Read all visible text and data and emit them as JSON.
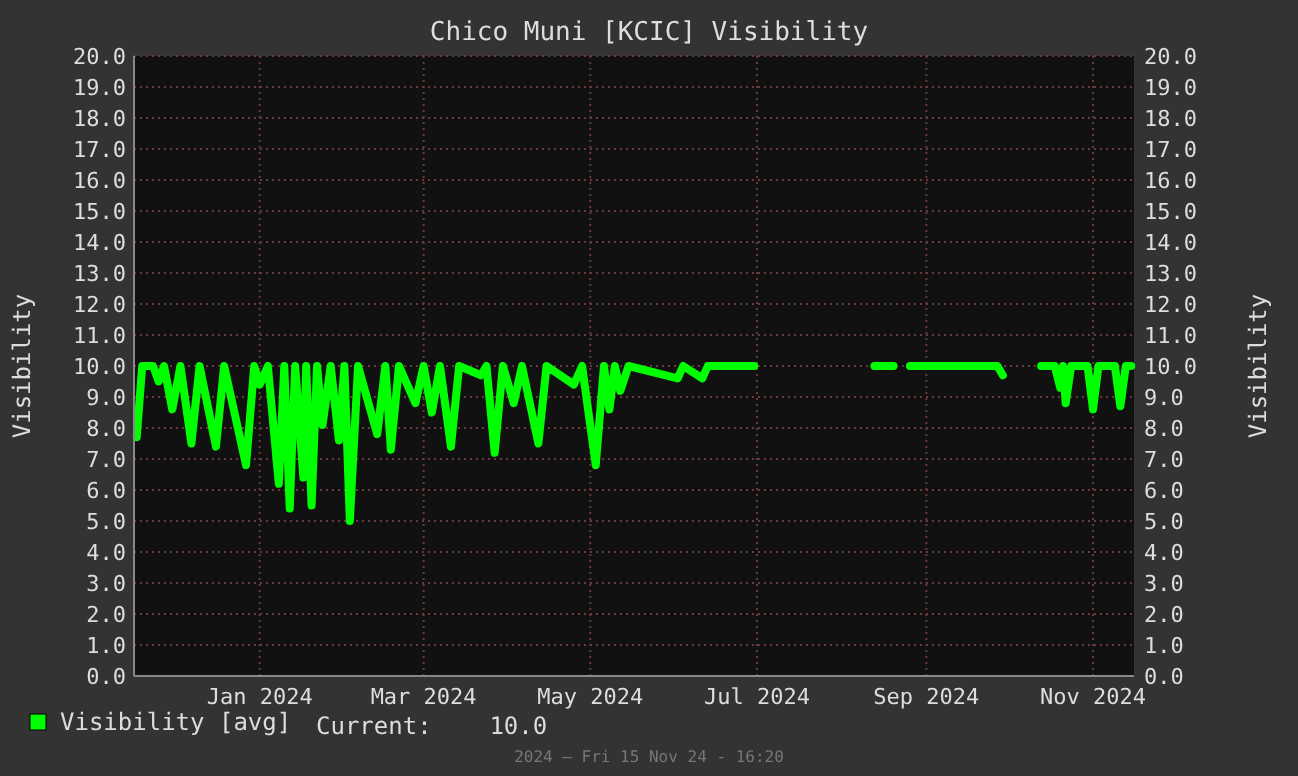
{
  "chart_data": {
    "type": "line",
    "title": "Chico Muni [KCIC] Visibility",
    "ylabel": "Visibility",
    "y2label": "Visibility",
    "x": [
      "2023-11-17",
      "2023-11-19",
      "2023-11-23",
      "2023-11-25",
      "2023-11-27",
      "2023-11-30",
      "2023-12-03",
      "2023-12-07",
      "2023-12-10",
      "2023-12-16",
      "2023-12-19",
      "2023-12-27",
      "2023-12-30",
      "2024-01-01",
      "2024-01-04",
      "2024-01-08",
      "2024-01-10",
      "2024-01-12",
      "2024-01-14",
      "2024-01-17",
      "2024-01-18",
      "2024-01-20",
      "2024-01-22",
      "2024-01-24",
      "2024-01-27",
      "2024-01-30",
      "2024-02-01",
      "2024-02-03",
      "2024-02-06",
      "2024-02-13",
      "2024-02-16",
      "2024-02-18",
      "2024-02-21",
      "2024-02-27",
      "2024-03-01",
      "2024-03-04",
      "2024-03-07",
      "2024-03-11",
      "2024-03-14",
      "2024-03-22",
      "2024-03-24",
      "2024-03-27",
      "2024-03-30",
      "2024-04-03",
      "2024-04-06",
      "2024-04-12",
      "2024-04-15",
      "2024-04-25",
      "2024-04-28",
      "2024-05-03",
      "2024-05-06",
      "2024-05-08",
      "2024-05-10",
      "2024-05-12",
      "2024-05-15",
      "2024-06-02",
      "2024-06-04",
      "2024-06-11",
      "2024-06-13",
      "2024-06-30",
      "2024-07-15",
      "2024-08-13",
      "2024-08-20",
      "2024-08-23",
      "2024-08-26",
      "2024-09-27",
      "2024-09-29",
      "2024-10-06",
      "2024-10-13",
      "2024-10-18",
      "2024-10-20",
      "2024-10-21",
      "2024-10-22",
      "2024-10-24",
      "2024-10-30",
      "2024-11-01",
      "2024-11-03",
      "2024-11-09",
      "2024-11-11",
      "2024-11-13",
      "2024-11-15"
    ],
    "series": [
      {
        "name": "Visibility [avg]",
        "color": "#00ff00",
        "values": [
          7.7,
          10.0,
          10.0,
          9.5,
          10.0,
          8.6,
          10.0,
          7.5,
          10.0,
          7.4,
          10.0,
          6.8,
          10.0,
          9.4,
          10.0,
          6.2,
          10.0,
          5.4,
          10.0,
          6.4,
          10.0,
          5.5,
          10.0,
          8.1,
          10.0,
          7.6,
          10.0,
          5.0,
          10.0,
          7.8,
          10.0,
          7.3,
          10.0,
          8.8,
          10.0,
          8.5,
          10.0,
          7.4,
          10.0,
          9.7,
          10.0,
          7.2,
          10.0,
          8.8,
          10.0,
          7.5,
          10.0,
          9.4,
          10.0,
          6.8,
          10.0,
          8.6,
          10.0,
          9.2,
          10.0,
          9.6,
          10.0,
          9.6,
          10.0,
          10.0,
          null,
          10.0,
          10.0,
          null,
          10.0,
          10.0,
          9.7,
          null,
          10.0,
          10.0,
          9.3,
          10.0,
          8.8,
          10.0,
          10.0,
          8.6,
          10.0,
          10.0,
          8.7,
          10.0,
          10.0
        ]
      }
    ],
    "xlim": [
      "2023-11-16",
      "2024-11-16"
    ],
    "xticks": [
      {
        "value": "2024-01-01",
        "label": "Jan 2024"
      },
      {
        "value": "2024-03-01",
        "label": "Mar 2024"
      },
      {
        "value": "2024-05-01",
        "label": "May 2024"
      },
      {
        "value": "2024-07-01",
        "label": "Jul 2024"
      },
      {
        "value": "2024-09-01",
        "label": "Sep 2024"
      },
      {
        "value": "2024-11-01",
        "label": "Nov 2024"
      }
    ],
    "ylim": [
      0,
      20
    ],
    "yticks": [
      {
        "value": 0,
        "label": "0.0"
      },
      {
        "value": 1,
        "label": "1.0"
      },
      {
        "value": 2,
        "label": "2.0"
      },
      {
        "value": 3,
        "label": "3.0"
      },
      {
        "value": 4,
        "label": "4.0"
      },
      {
        "value": 5,
        "label": "5.0"
      },
      {
        "value": 6,
        "label": "6.0"
      },
      {
        "value": 7,
        "label": "7.0"
      },
      {
        "value": 8,
        "label": "8.0"
      },
      {
        "value": 9,
        "label": "9.0"
      },
      {
        "value": 10,
        "label": "10.0"
      },
      {
        "value": 11,
        "label": "11.0"
      },
      {
        "value": 12,
        "label": "12.0"
      },
      {
        "value": 13,
        "label": "13.0"
      },
      {
        "value": 14,
        "label": "14.0"
      },
      {
        "value": 15,
        "label": "15.0"
      },
      {
        "value": 16,
        "label": "16.0"
      },
      {
        "value": 17,
        "label": "17.0"
      },
      {
        "value": 18,
        "label": "18.0"
      },
      {
        "value": 19,
        "label": "19.0"
      },
      {
        "value": 20,
        "label": "20.0"
      }
    ],
    "y2lim": [
      0,
      20
    ],
    "y2ticks": [
      {
        "value": 0,
        "label": "0.0"
      },
      {
        "value": 1,
        "label": "1.0"
      },
      {
        "value": 2,
        "label": "2.0"
      },
      {
        "value": 3,
        "label": "3.0"
      },
      {
        "value": 4,
        "label": "4.0"
      },
      {
        "value": 5,
        "label": "5.0"
      },
      {
        "value": 6,
        "label": "6.0"
      },
      {
        "value": 7,
        "label": "7.0"
      },
      {
        "value": 8,
        "label": "8.0"
      },
      {
        "value": 9,
        "label": "9.0"
      },
      {
        "value": 10,
        "label": "10.0"
      },
      {
        "value": 11,
        "label": "11.0"
      },
      {
        "value": 12,
        "label": "12.0"
      },
      {
        "value": 13,
        "label": "13.0"
      },
      {
        "value": 14,
        "label": "14.0"
      },
      {
        "value": 15,
        "label": "15.0"
      },
      {
        "value": 16,
        "label": "16.0"
      },
      {
        "value": 17,
        "label": "17.0"
      },
      {
        "value": 18,
        "label": "18.0"
      },
      {
        "value": 19,
        "label": "19.0"
      },
      {
        "value": 20,
        "label": "20.0"
      }
    ],
    "grid": true,
    "legend": "bottom left",
    "line_style": "solid",
    "annotations": [
      "Current:    10.0",
      "2024 — Fri 15 Nov 24 - 16:20"
    ]
  }
}
